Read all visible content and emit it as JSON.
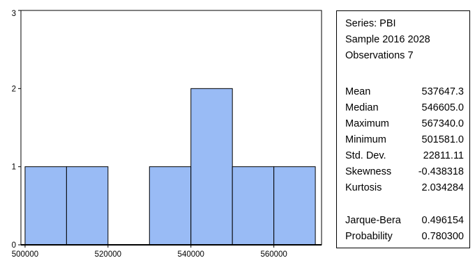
{
  "chart_data": {
    "type": "bar",
    "bins": [
      {
        "from": 500000,
        "to": 510000,
        "count": 1
      },
      {
        "from": 510000,
        "to": 520000,
        "count": 1
      },
      {
        "from": 520000,
        "to": 530000,
        "count": 0
      },
      {
        "from": 530000,
        "to": 540000,
        "count": 1
      },
      {
        "from": 540000,
        "to": 550000,
        "count": 2
      },
      {
        "from": 550000,
        "to": 560000,
        "count": 1
      },
      {
        "from": 560000,
        "to": 570000,
        "count": 1
      }
    ],
    "xlim": [
      499000,
      571500
    ],
    "ylim": [
      0,
      3
    ],
    "x_ticks": [
      500000,
      520000,
      540000,
      560000
    ],
    "y_ticks": [
      0,
      1,
      2,
      3
    ],
    "bar_color": "#99bbf5",
    "grid": false
  },
  "stats": {
    "series_label": "Series: PBI",
    "sample_label": "Sample 2016 2028",
    "observations_label": "Observations 7",
    "rows": [
      {
        "label": "Mean",
        "value": "537647.3"
      },
      {
        "label": "Median",
        "value": "546605.0"
      },
      {
        "label": "Maximum",
        "value": "567340.0"
      },
      {
        "label": "Minimum",
        "value": "501581.0"
      },
      {
        "label": "Std. Dev.",
        "value": "22811.11"
      },
      {
        "label": "Skewness",
        "value": "-0.438318"
      },
      {
        "label": "Kurtosis",
        "value": "2.034284"
      }
    ],
    "tests": [
      {
        "label": "Jarque-Bera",
        "value": "0.496154"
      },
      {
        "label": "Probability",
        "value": "0.780300"
      }
    ]
  }
}
